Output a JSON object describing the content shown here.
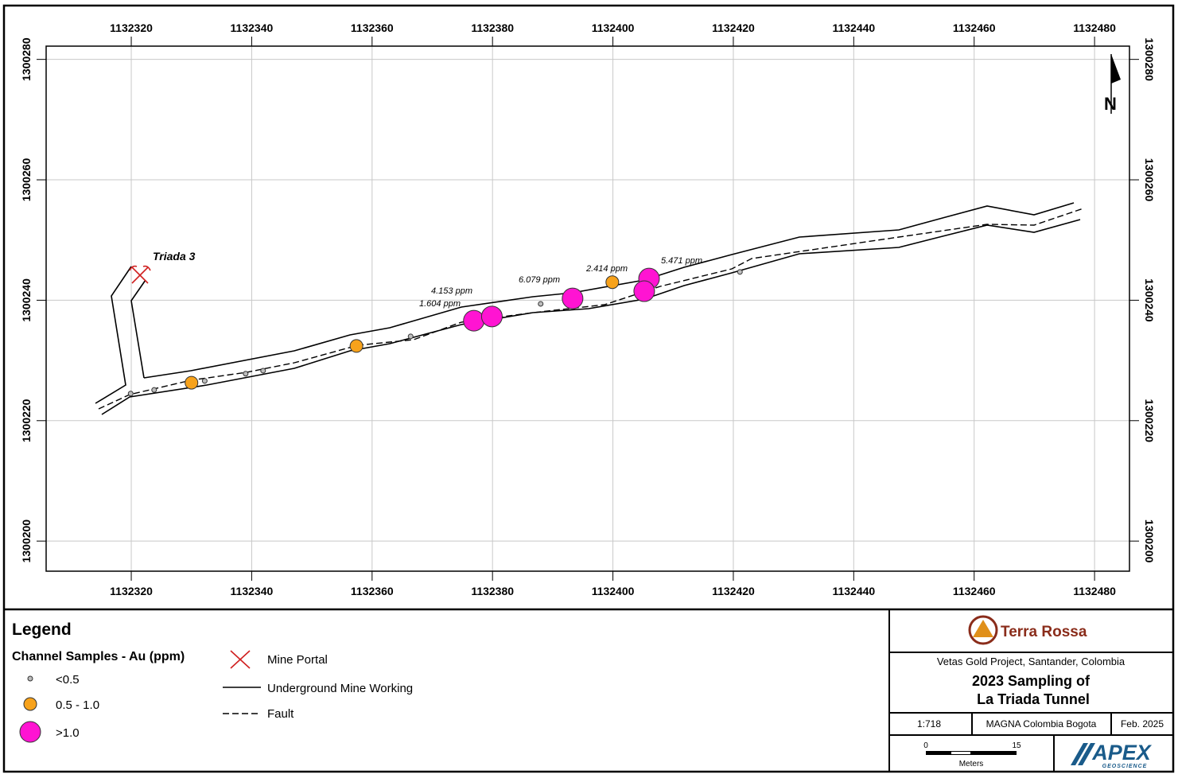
{
  "chart_data": {
    "type": "scatter",
    "xlim": [
      1132305.86,
      1132485.8
    ],
    "ylim": [
      1300195.0,
      1300282.2
    ],
    "xticks": [
      1132320,
      1132340,
      1132360,
      1132380,
      1132400,
      1132420,
      1132440,
      1132460,
      1132480
    ],
    "yticks": [
      1300200,
      1300220,
      1300240,
      1300260,
      1300280
    ],
    "grid": true,
    "series": [
      {
        "name": "<0.5",
        "color": "#bdbdbd",
        "x": [
          1132319.9,
          1132323.8,
          1132332.2,
          1132339.0,
          1132341.9,
          1132357.5,
          1132366.4,
          1132388.0,
          1132421.1
        ],
        "values": [
          1300224.5,
          1300225.1,
          1300226.6,
          1300227.8,
          1300228.3,
          1300232.1,
          1300234.0,
          1300239.4,
          1300244.7
        ]
      },
      {
        "name": "0.5 - 1.0",
        "color": "#f7a21b",
        "x": [
          1132330.0,
          1132357.4,
          1132399.9
        ],
        "values": [
          1300226.3,
          1300232.4,
          1300243.0
        ]
      },
      {
        "name": ">1.0",
        "color": "#ff14d2",
        "x": [
          1132376.9,
          1132379.9,
          1132393.3,
          1132406.0,
          1132405.2
        ],
        "values": [
          1300236.6,
          1300237.3,
          1300240.3,
          1300243.6,
          1300241.5
        ]
      }
    ],
    "annotations": [
      "4.153 ppm",
      "1.604 ppm",
      "6.079 ppm",
      "2.414 ppm",
      "5.471 ppm"
    ],
    "portal_label": "Triada 3",
    "north": "N"
  },
  "legend": {
    "title": "Legend",
    "subtitle": "Channel Samples - Au (ppm)",
    "items": [
      "Mine Portal",
      "Underground Mine Working",
      "Fault"
    ]
  },
  "title_block": {
    "company": "Terra Rossa",
    "project": "Vetas Gold Project, Santander, Colombia",
    "title": [
      "2023 Sampling of",
      "La Triada Tunnel"
    ],
    "scale": "1:718",
    "datum": "MAGNA Colombia Bogota",
    "date": "Feb. 2025",
    "scale_bar": {
      "start": 0,
      "end": 15,
      "unit": "Meters"
    },
    "logo": {
      "name": "APEX",
      "tagline": "GEOSCIENCE"
    }
  }
}
